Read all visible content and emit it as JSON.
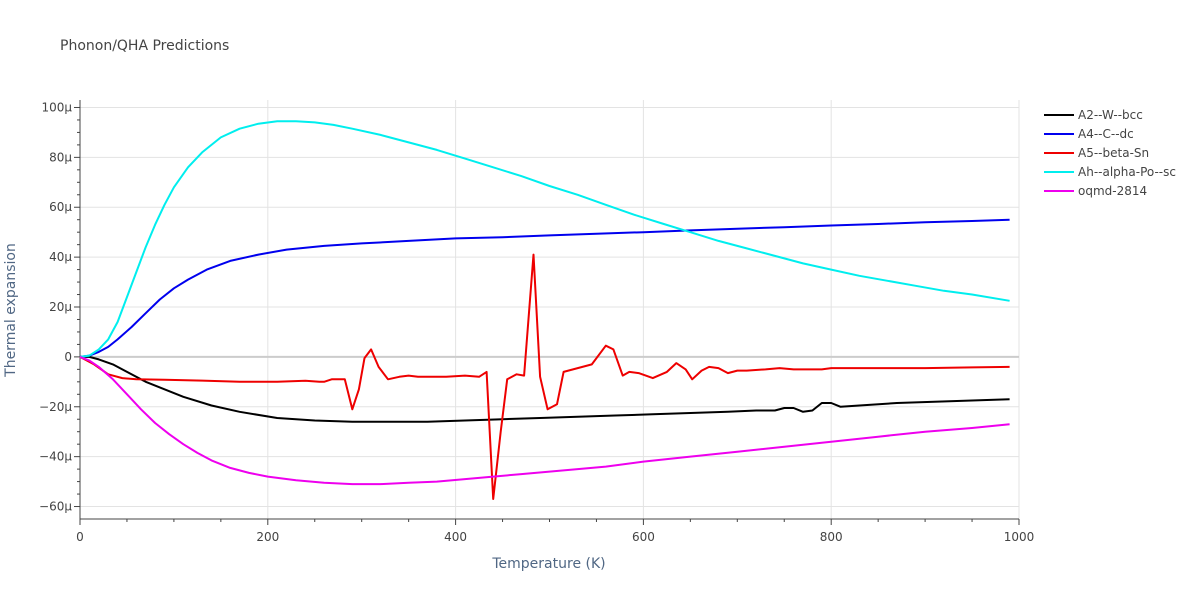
{
  "chart_data": {
    "type": "line",
    "title": "Phonon/QHA Predictions",
    "xlabel": "Temperature (K)",
    "ylabel": "Thermal expansion",
    "xlim": [
      0,
      1000
    ],
    "ylim": [
      -65,
      103
    ],
    "x_ticks": [
      0,
      200,
      400,
      600,
      800,
      1000
    ],
    "x_tick_labels": [
      "0",
      "200",
      "400",
      "600",
      "800",
      "1000"
    ],
    "y_ticks": [
      -60,
      -40,
      -20,
      0,
      20,
      40,
      60,
      80,
      100
    ],
    "y_tick_labels": [
      "−60μ",
      "−40μ",
      "−20μ",
      "0",
      "20μ",
      "40μ",
      "60μ",
      "80μ",
      "100μ"
    ],
    "y_unit_note": "values in 1e-6 (μ)",
    "grid": true,
    "legend_position": "top-right",
    "series": [
      {
        "name": "A2--W--bcc",
        "color": "#000000",
        "x": [
          0,
          10,
          20,
          35,
          50,
          70,
          90,
          110,
          140,
          170,
          210,
          250,
          290,
          330,
          370,
          410,
          450,
          490,
          530,
          570,
          610,
          650,
          690,
          720,
          740,
          750,
          760,
          770,
          780,
          790,
          800,
          810,
          830,
          870,
          910,
          950,
          990
        ],
        "y": [
          0,
          0,
          -1,
          -3,
          -6,
          -10,
          -13,
          -16,
          -19.5,
          -22,
          -24.5,
          -25.5,
          -26,
          -26,
          -26,
          -25.5,
          -25,
          -24.5,
          -24,
          -23.5,
          -23,
          -22.5,
          -22,
          -21.5,
          -21.5,
          -20.5,
          -20.5,
          -22,
          -21.5,
          -18.5,
          -18.5,
          -20,
          -19.5,
          -18.5,
          -18,
          -17.5,
          -17
        ]
      },
      {
        "name": "A4--C--dc",
        "color": "#0000ee",
        "x": [
          0,
          10,
          20,
          30,
          40,
          55,
          70,
          85,
          100,
          115,
          135,
          160,
          190,
          220,
          260,
          300,
          350,
          400,
          450,
          500,
          550,
          600,
          650,
          700,
          750,
          800,
          850,
          900,
          950,
          990
        ],
        "y": [
          0,
          0.5,
          2,
          4,
          7,
          12,
          17.5,
          23,
          27.5,
          31,
          35,
          38.5,
          41,
          43,
          44.5,
          45.5,
          46.5,
          47.5,
          48,
          48.7,
          49.4,
          50,
          50.7,
          51.4,
          52,
          52.7,
          53.3,
          54,
          54.5,
          55
        ]
      },
      {
        "name": "A5--beta-Sn",
        "color": "#ee0000",
        "x": [
          0,
          15,
          30,
          45,
          60,
          90,
          130,
          170,
          210,
          240,
          255,
          260,
          268,
          275,
          282,
          290,
          297,
          303,
          310,
          318,
          328,
          340,
          350,
          360,
          370,
          390,
          410,
          425,
          433,
          440,
          448,
          455,
          465,
          473,
          483,
          490,
          498,
          508,
          515,
          525,
          545,
          560,
          568,
          578,
          585,
          595,
          610,
          625,
          635,
          645,
          652,
          662,
          670,
          680,
          690,
          700,
          710,
          730,
          745,
          760,
          790,
          800,
          810,
          830,
          850,
          880,
          900,
          950,
          990
        ],
        "y": [
          0,
          -3,
          -7,
          -8.5,
          -9,
          -9.2,
          -9.5,
          -10,
          -10,
          -9.6,
          -10,
          -10,
          -9,
          -9,
          -9,
          -21,
          -13,
          -0.5,
          3,
          -4,
          -9,
          -8,
          -7.5,
          -8,
          -8,
          -8,
          -7.5,
          -8,
          -6,
          -57,
          -30,
          -9,
          -7,
          -7.5,
          41,
          -8,
          -21,
          -19,
          -6,
          -5,
          -3,
          4.5,
          3,
          -7.5,
          -6,
          -6.5,
          -8.5,
          -6,
          -2.5,
          -5,
          -9,
          -5.5,
          -4,
          -4.5,
          -6.5,
          -5.5,
          -5.5,
          -5,
          -4.5,
          -5,
          -5,
          -4.5,
          -4.5,
          -4.5,
          -4.5,
          -4.5,
          -4.5,
          -4.2,
          -4
        ]
      },
      {
        "name": "Ah--alpha-Po--sc",
        "color": "#00eeee",
        "x": [
          0,
          10,
          20,
          30,
          40,
          50,
          60,
          70,
          80,
          90,
          100,
          115,
          130,
          150,
          170,
          190,
          210,
          230,
          250,
          270,
          290,
          320,
          350,
          380,
          410,
          440,
          470,
          500,
          530,
          560,
          590,
          620,
          650,
          680,
          710,
          740,
          770,
          800,
          830,
          860,
          890,
          920,
          950,
          990
        ],
        "y": [
          0,
          0.5,
          3,
          7,
          14,
          24,
          34,
          44,
          53,
          61,
          68,
          76,
          82,
          88,
          91.5,
          93.5,
          94.5,
          94.5,
          94,
          93,
          91.5,
          89,
          86,
          83,
          79.5,
          76,
          72.5,
          68.5,
          65,
          61,
          57,
          53.5,
          50,
          46.5,
          43.5,
          40.5,
          37.5,
          35,
          32.5,
          30.5,
          28.5,
          26.5,
          25,
          22.5
        ]
      },
      {
        "name": "oqmd-2814",
        "color": "#ee00ee",
        "x": [
          0,
          10,
          20,
          35,
          50,
          65,
          80,
          95,
          110,
          125,
          140,
          160,
          180,
          200,
          230,
          260,
          290,
          320,
          350,
          380,
          410,
          440,
          470,
          500,
          530,
          560,
          600,
          650,
          700,
          750,
          800,
          850,
          900,
          950,
          990
        ],
        "y": [
          0,
          -1.5,
          -4,
          -9,
          -15,
          -21,
          -26.5,
          -31,
          -35,
          -38.5,
          -41.5,
          -44.5,
          -46.5,
          -48,
          -49.5,
          -50.5,
          -51,
          -51,
          -50.5,
          -50,
          -49,
          -48,
          -47,
          -46,
          -45,
          -44,
          -42,
          -40,
          -38,
          -36,
          -34,
          -32,
          -30,
          -28.5,
          -27
        ]
      }
    ]
  }
}
